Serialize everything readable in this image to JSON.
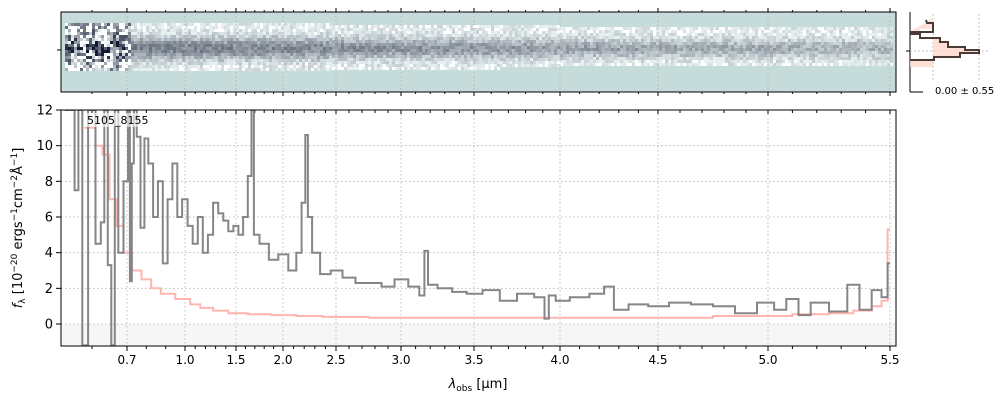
{
  "chart_data": {
    "type": "line",
    "object_label": "5105_8155",
    "xlabel": "λ_obs [μm]",
    "xlabel_main": "λ",
    "xlabel_sub": "obs",
    "xlabel_unit": " [μm]",
    "ylabel_parts": {
      "f": "f",
      "sub": "λ",
      "pre": " [10",
      "exp1": "−20",
      "mid1": " ergs",
      "exp2": "−1",
      "mid2": "cm",
      "exp3": "−2",
      "mid3": "Å",
      "exp4": "−1",
      "post": "]"
    },
    "ylim": [
      -1.2,
      12.2
    ],
    "xlim": [
      0.52,
      5.52
    ],
    "x_ticks": [
      "0.7",
      "1.0",
      "1.5",
      "2.0",
      "2.5",
      "3.0",
      "3.5",
      "4.0",
      "4.5",
      "5.0",
      "5.5"
    ],
    "y_ticks": [
      "0",
      "2",
      "4",
      "6",
      "8",
      "10",
      "12"
    ],
    "grid": true,
    "colors": {
      "flux": "#808080",
      "error": "#ffb6b0",
      "twod_bg": "#c5dcdb",
      "profile": "#4a3a36",
      "profile_fill": "#ffd7cc"
    },
    "series": [
      {
        "role": "flux",
        "x": [
          0.53,
          0.55,
          0.56,
          0.57,
          0.58,
          0.6,
          0.62,
          0.63,
          0.64,
          0.65,
          0.66,
          0.67,
          0.68,
          0.7,
          0.71,
          0.72,
          0.73,
          0.74,
          0.76,
          0.78,
          0.8,
          0.82,
          0.85,
          0.87,
          0.9,
          0.92,
          0.95,
          0.97,
          1.0,
          1.05,
          1.1,
          1.15,
          1.2,
          1.25,
          1.3,
          1.35,
          1.4,
          1.45,
          1.5,
          1.55,
          1.6,
          1.65,
          1.68,
          1.7,
          1.8,
          1.9,
          2.0,
          2.1,
          2.15,
          2.2,
          2.22,
          2.25,
          2.3,
          2.4,
          2.5,
          2.6,
          2.7,
          2.8,
          2.9,
          3.0,
          3.1,
          3.15,
          3.17,
          3.2,
          3.3,
          3.4,
          3.5,
          3.6,
          3.7,
          3.8,
          3.9,
          3.92,
          3.95,
          4.0,
          4.1,
          4.2,
          4.25,
          4.3,
          4.4,
          4.5,
          4.6,
          4.7,
          4.8,
          4.9,
          5.0,
          5.05,
          5.1,
          5.15,
          5.2,
          5.3,
          5.35,
          5.4,
          5.45,
          5.48,
          5.5
        ],
        "y": [
          12,
          12,
          7.5,
          12,
          -1.2,
          12,
          4.5,
          5.7,
          12,
          3.3,
          -1.2,
          12,
          4,
          8,
          12,
          2.4,
          9,
          12,
          10.5,
          5.4,
          10.4,
          9,
          6,
          8,
          3.4,
          7,
          9,
          6,
          7,
          5.5,
          4.5,
          6,
          4,
          5,
          6.8,
          6.2,
          5.8,
          5.2,
          5.5,
          5,
          6,
          8.3,
          12,
          5,
          4.5,
          3.6,
          3.9,
          3,
          4,
          6.8,
          10.6,
          6,
          4,
          2.8,
          3,
          2.6,
          2.3,
          2.3,
          2.1,
          2.5,
          2.1,
          1.6,
          4.1,
          2.2,
          2.0,
          1.8,
          1.7,
          1.9,
          1.3,
          1.7,
          1.5,
          0.3,
          1.6,
          1.3,
          1.5,
          1.7,
          2.1,
          0.8,
          1.1,
          1.0,
          1.2,
          1.1,
          1.0,
          0.6,
          1.2,
          0.8,
          1.4,
          0.5,
          1.2,
          0.7,
          2.2,
          0.8,
          1.9,
          1.5,
          3.4
        ]
      },
      {
        "role": "error",
        "x": [
          0.58,
          0.6,
          0.62,
          0.64,
          0.66,
          0.68,
          0.7,
          0.75,
          0.8,
          0.85,
          0.9,
          1.0,
          1.1,
          1.2,
          1.35,
          1.5,
          1.75,
          2.0,
          2.25,
          2.5,
          3.0,
          3.5,
          4.0,
          4.5,
          5.0,
          5.2,
          5.3,
          5.4,
          5.45,
          5.48,
          5.5
        ],
        "y": [
          11,
          11,
          10,
          9.5,
          7,
          5.5,
          4,
          3,
          2.5,
          2,
          1.7,
          1.4,
          1.1,
          0.9,
          0.75,
          0.6,
          0.55,
          0.5,
          0.45,
          0.4,
          0.35,
          0.35,
          0.35,
          0.35,
          0.45,
          0.55,
          0.6,
          0.75,
          1.0,
          1.3,
          5.3
        ]
      }
    ],
    "profile_label": "0.00 ± 0.55"
  }
}
